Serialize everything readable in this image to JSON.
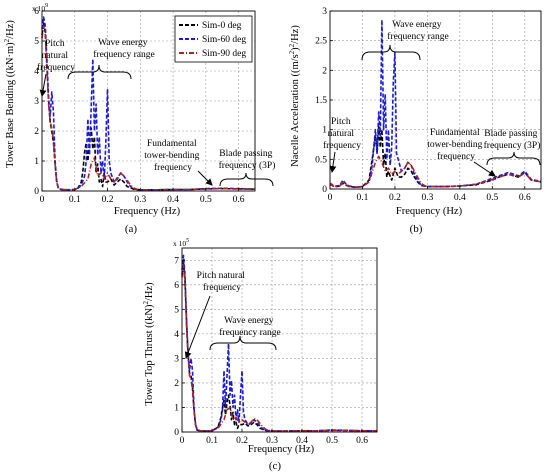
{
  "chart_data": [
    {
      "type": "line",
      "panel_label": "(a)",
      "xlabel": "Frequency (Hz)",
      "ylabel_parts": [
        "Tower Base Bending ((kN·m)",
        "2",
        "/Hz)"
      ],
      "y_exponent": [
        "x 10",
        "9"
      ],
      "xlim": [
        0,
        0.65
      ],
      "ylim": [
        0,
        6
      ],
      "xticks": [
        0,
        0.1,
        0.2,
        0.3,
        0.4,
        0.5,
        0.6
      ],
      "yticks": [
        0,
        1,
        2,
        3,
        4,
        5,
        6
      ],
      "xtick_labels": [
        "0",
        "0.1",
        "0.2",
        "0.3",
        "0.4",
        "0.5",
        "0.6"
      ],
      "ytick_labels": [
        "0",
        "1",
        "2",
        "3",
        "4",
        "5",
        "6"
      ],
      "grid": true,
      "legend": {
        "placement": "top-right",
        "entries": [
          {
            "label": "Sim-0 deg",
            "color": "#000000",
            "dash": "dashed"
          },
          {
            "label": "Sim-60 deg",
            "color": "#1a1adc",
            "dash": "dashed"
          },
          {
            "label": "Sim-90 deg",
            "color": "#b22222",
            "dash": "dashdot"
          }
        ]
      },
      "series": [
        {
          "color": "#000000",
          "x": [
            0,
            0.005,
            0.01,
            0.015,
            0.02,
            0.025,
            0.03,
            0.035,
            0.04,
            0.045,
            0.05,
            0.06,
            0.08,
            0.1,
            0.11,
            0.12,
            0.125,
            0.13,
            0.135,
            0.14,
            0.145,
            0.15,
            0.155,
            0.16,
            0.165,
            0.17,
            0.175,
            0.18,
            0.185,
            0.19,
            0.195,
            0.2,
            0.21,
            0.22,
            0.23,
            0.24,
            0.25,
            0.26,
            0.27,
            0.28,
            0.3,
            0.35,
            0.4,
            0.45,
            0.5,
            0.55,
            0.6,
            0.65
          ],
          "y": [
            5.2,
            5.6,
            5.3,
            4.2,
            3.0,
            2.3,
            2.0,
            1.6,
            0.9,
            0.3,
            0.08,
            0.05,
            0.04,
            0.05,
            0.1,
            0.3,
            0.7,
            1.3,
            1.6,
            1.0,
            1.7,
            2.1,
            1.4,
            1.8,
            0.6,
            0.9,
            0.3,
            0.4,
            0.15,
            0.6,
            0.3,
            0.3,
            0.4,
            0.2,
            0.3,
            0.4,
            0.3,
            0.15,
            0.1,
            0.06,
            0.04,
            0.04,
            0.05,
            0.05,
            0.07,
            0.08,
            0.07,
            0.06
          ]
        },
        {
          "color": "#1a1adc",
          "x": [
            0,
            0.005,
            0.01,
            0.015,
            0.02,
            0.025,
            0.03,
            0.035,
            0.04,
            0.045,
            0.05,
            0.06,
            0.08,
            0.1,
            0.11,
            0.12,
            0.13,
            0.135,
            0.14,
            0.145,
            0.15,
            0.155,
            0.16,
            0.165,
            0.17,
            0.175,
            0.18,
            0.185,
            0.19,
            0.195,
            0.2,
            0.205,
            0.21,
            0.22,
            0.23,
            0.24,
            0.25,
            0.26,
            0.27,
            0.28,
            0.3,
            0.35,
            0.4,
            0.45,
            0.5,
            0.55,
            0.6,
            0.65
          ],
          "y": [
            5.4,
            5.8,
            5.5,
            4.4,
            3.1,
            2.5,
            3.3,
            2.6,
            1.0,
            0.35,
            0.1,
            0.05,
            0.04,
            0.05,
            0.1,
            0.2,
            0.5,
            1.0,
            2.4,
            1.2,
            2.8,
            4.4,
            2.0,
            2.9,
            1.2,
            1.8,
            0.6,
            1.0,
            0.4,
            1.7,
            3.4,
            1.0,
            0.6,
            0.3,
            0.4,
            0.6,
            0.5,
            0.3,
            0.15,
            0.07,
            0.04,
            0.04,
            0.05,
            0.05,
            0.08,
            0.09,
            0.08,
            0.06
          ]
        },
        {
          "color": "#b22222",
          "x": [
            0,
            0.005,
            0.01,
            0.015,
            0.02,
            0.025,
            0.03,
            0.035,
            0.04,
            0.045,
            0.05,
            0.06,
            0.08,
            0.1,
            0.12,
            0.14,
            0.15,
            0.16,
            0.17,
            0.18,
            0.19,
            0.2,
            0.21,
            0.22,
            0.23,
            0.24,
            0.25,
            0.26,
            0.27,
            0.28,
            0.29,
            0.3,
            0.35,
            0.4,
            0.45,
            0.5,
            0.55,
            0.6,
            0.65
          ],
          "y": [
            5.1,
            5.5,
            5.2,
            4.1,
            2.9,
            2.3,
            2.1,
            1.7,
            0.9,
            0.3,
            0.08,
            0.05,
            0.04,
            0.05,
            0.15,
            0.4,
            0.9,
            1.1,
            0.5,
            0.6,
            0.4,
            0.6,
            0.4,
            0.3,
            0.45,
            0.6,
            0.5,
            0.35,
            0.2,
            0.1,
            0.06,
            0.04,
            0.04,
            0.05,
            0.05,
            0.07,
            0.08,
            0.07,
            0.06
          ]
        }
      ],
      "annotations": [
        {
          "lines": [
            "Pitch",
            "natural",
            "frequency"
          ]
        },
        {
          "lines": [
            "Wave energy",
            "frequency range"
          ]
        },
        {
          "lines": [
            "Fundamental",
            "tower-bending",
            "frequency"
          ]
        },
        {
          "lines": [
            "Blade passing",
            "frequency (3P)"
          ]
        }
      ]
    },
    {
      "type": "line",
      "panel_label": "(b)",
      "xlabel": "Frequency (Hz)",
      "ylabel_parts": [
        "Nacelle Acceleration ((m/s",
        "2",
        ")",
        "2",
        "/Hz)"
      ],
      "xlim": [
        0,
        0.65
      ],
      "ylim": [
        0,
        3
      ],
      "xticks": [
        0,
        0.1,
        0.2,
        0.3,
        0.4,
        0.5,
        0.6
      ],
      "yticks": [
        0,
        0.5,
        1,
        1.5,
        2,
        2.5,
        3
      ],
      "xtick_labels": [
        "0",
        "0.1",
        "0.2",
        "0.3",
        "0.4",
        "0.5",
        "0.6"
      ],
      "ytick_labels": [
        "0",
        "0.5",
        "1",
        "1.5",
        "2",
        "2.5",
        "3"
      ],
      "grid": true,
      "series": [
        {
          "color": "#000000",
          "x": [
            0,
            0.01,
            0.02,
            0.03,
            0.04,
            0.05,
            0.06,
            0.08,
            0.1,
            0.12,
            0.13,
            0.14,
            0.145,
            0.15,
            0.155,
            0.16,
            0.165,
            0.17,
            0.175,
            0.18,
            0.19,
            0.2,
            0.21,
            0.22,
            0.23,
            0.24,
            0.25,
            0.26,
            0.27,
            0.28,
            0.3,
            0.35,
            0.4,
            0.45,
            0.5,
            0.52,
            0.55,
            0.58,
            0.6,
            0.62,
            0.65
          ],
          "y": [
            0.08,
            0.05,
            0.04,
            0.05,
            0.1,
            0.06,
            0.04,
            0.03,
            0.04,
            0.15,
            0.5,
            0.9,
            0.6,
            1.05,
            0.7,
            1.0,
            0.4,
            0.6,
            0.2,
            0.3,
            0.15,
            0.35,
            0.2,
            0.2,
            0.25,
            0.35,
            0.3,
            0.2,
            0.12,
            0.06,
            0.04,
            0.04,
            0.05,
            0.07,
            0.15,
            0.2,
            0.25,
            0.2,
            0.28,
            0.15,
            0.12
          ]
        },
        {
          "color": "#1a1adc",
          "x": [
            0,
            0.01,
            0.02,
            0.03,
            0.04,
            0.05,
            0.06,
            0.08,
            0.1,
            0.12,
            0.13,
            0.14,
            0.145,
            0.15,
            0.155,
            0.16,
            0.165,
            0.17,
            0.175,
            0.18,
            0.185,
            0.19,
            0.195,
            0.2,
            0.205,
            0.21,
            0.22,
            0.23,
            0.24,
            0.25,
            0.26,
            0.27,
            0.28,
            0.3,
            0.35,
            0.4,
            0.45,
            0.5,
            0.52,
            0.55,
            0.58,
            0.6,
            0.62,
            0.65
          ],
          "y": [
            0.1,
            0.06,
            0.05,
            0.06,
            0.15,
            0.08,
            0.05,
            0.03,
            0.04,
            0.12,
            0.4,
            1.0,
            0.6,
            1.3,
            0.9,
            2.85,
            1.0,
            1.6,
            0.5,
            1.0,
            0.4,
            0.7,
            1.8,
            2.3,
            0.6,
            0.5,
            0.3,
            0.35,
            0.45,
            0.4,
            0.25,
            0.15,
            0.07,
            0.04,
            0.04,
            0.05,
            0.08,
            0.18,
            0.22,
            0.28,
            0.22,
            0.3,
            0.16,
            0.13
          ]
        },
        {
          "color": "#b22222",
          "x": [
            0,
            0.01,
            0.02,
            0.03,
            0.04,
            0.05,
            0.06,
            0.08,
            0.1,
            0.12,
            0.14,
            0.15,
            0.16,
            0.17,
            0.18,
            0.19,
            0.2,
            0.21,
            0.22,
            0.23,
            0.24,
            0.25,
            0.26,
            0.27,
            0.28,
            0.29,
            0.3,
            0.35,
            0.4,
            0.45,
            0.5,
            0.52,
            0.55,
            0.58,
            0.6,
            0.62,
            0.65
          ],
          "y": [
            0.09,
            0.05,
            0.04,
            0.05,
            0.12,
            0.07,
            0.04,
            0.03,
            0.04,
            0.12,
            0.45,
            0.55,
            0.45,
            0.3,
            0.35,
            0.25,
            0.3,
            0.25,
            0.3,
            0.35,
            0.45,
            0.4,
            0.3,
            0.2,
            0.1,
            0.06,
            0.04,
            0.04,
            0.05,
            0.08,
            0.16,
            0.2,
            0.25,
            0.2,
            0.27,
            0.15,
            0.12
          ]
        }
      ],
      "annotations": [
        {
          "lines": [
            "Pitch",
            "natural",
            "frequency"
          ]
        },
        {
          "lines": [
            "Wave energy",
            "frequency range"
          ]
        },
        {
          "lines": [
            "Fundamental",
            "tower-bending",
            "frequency"
          ]
        },
        {
          "lines": [
            "Blade passing",
            "frequency (3P)"
          ]
        }
      ]
    },
    {
      "type": "line",
      "panel_label": "(c)",
      "xlabel": "Frequency (Hz)",
      "ylabel_parts": [
        "Tower Top Thrust ((kN)",
        "2",
        "/Hz)"
      ],
      "y_exponent": [
        "x 10",
        "5"
      ],
      "xlim": [
        0,
        0.65
      ],
      "ylim": [
        0,
        7.5
      ],
      "xticks": [
        0,
        0.1,
        0.2,
        0.3,
        0.4,
        0.5,
        0.6
      ],
      "yticks": [
        0,
        1,
        2,
        3,
        4,
        5,
        6,
        7
      ],
      "xtick_labels": [
        "0",
        "0.1",
        "0.2",
        "0.3",
        "0.4",
        "0.5",
        "0.6"
      ],
      "ytick_labels": [
        "0",
        "1",
        "2",
        "3",
        "4",
        "5",
        "6",
        "7"
      ],
      "grid": true,
      "series": [
        {
          "color": "#000000",
          "x": [
            0,
            0.005,
            0.01,
            0.015,
            0.02,
            0.025,
            0.03,
            0.035,
            0.04,
            0.045,
            0.05,
            0.06,
            0.08,
            0.1,
            0.12,
            0.13,
            0.135,
            0.14,
            0.145,
            0.15,
            0.155,
            0.16,
            0.165,
            0.17,
            0.175,
            0.18,
            0.185,
            0.19,
            0.2,
            0.21,
            0.22,
            0.23,
            0.24,
            0.25,
            0.26,
            0.27,
            0.28,
            0.3,
            0.35,
            0.4,
            0.45,
            0.5,
            0.55,
            0.6,
            0.65
          ],
          "y": [
            6.4,
            6.9,
            6.2,
            4.5,
            3.2,
            2.4,
            2.3,
            1.8,
            0.9,
            0.3,
            0.08,
            0.05,
            0.04,
            0.05,
            0.2,
            0.6,
            1.0,
            1.3,
            0.7,
            1.2,
            1.5,
            1.1,
            0.5,
            0.8,
            0.3,
            0.4,
            0.15,
            0.3,
            0.3,
            0.35,
            0.25,
            0.3,
            0.4,
            0.3,
            0.15,
            0.1,
            0.06,
            0.04,
            0.04,
            0.05,
            0.05,
            0.07,
            0.06,
            0.05,
            0.05
          ]
        },
        {
          "color": "#1a1adc",
          "x": [
            0,
            0.005,
            0.01,
            0.015,
            0.02,
            0.025,
            0.03,
            0.035,
            0.04,
            0.045,
            0.05,
            0.06,
            0.08,
            0.1,
            0.12,
            0.13,
            0.135,
            0.14,
            0.145,
            0.15,
            0.155,
            0.16,
            0.165,
            0.17,
            0.175,
            0.18,
            0.185,
            0.19,
            0.195,
            0.2,
            0.205,
            0.21,
            0.22,
            0.23,
            0.24,
            0.25,
            0.26,
            0.27,
            0.28,
            0.3,
            0.35,
            0.4,
            0.45,
            0.5,
            0.55,
            0.6,
            0.65
          ],
          "y": [
            6.6,
            7.2,
            6.4,
            4.6,
            3.3,
            2.5,
            3.0,
            2.5,
            1.0,
            0.35,
            0.1,
            0.05,
            0.04,
            0.05,
            0.2,
            0.5,
            0.9,
            2.5,
            1.0,
            2.3,
            3.6,
            1.5,
            2.1,
            1.0,
            1.5,
            0.5,
            0.9,
            0.4,
            1.5,
            2.5,
            0.8,
            0.5,
            0.3,
            0.35,
            0.5,
            0.4,
            0.25,
            0.12,
            0.06,
            0.04,
            0.04,
            0.05,
            0.05,
            0.08,
            0.07,
            0.05,
            0.05
          ]
        },
        {
          "color": "#b22222",
          "x": [
            0,
            0.005,
            0.01,
            0.015,
            0.02,
            0.025,
            0.03,
            0.035,
            0.04,
            0.045,
            0.05,
            0.06,
            0.08,
            0.1,
            0.12,
            0.14,
            0.15,
            0.16,
            0.17,
            0.18,
            0.19,
            0.2,
            0.21,
            0.22,
            0.23,
            0.24,
            0.25,
            0.26,
            0.27,
            0.28,
            0.29,
            0.3,
            0.35,
            0.4,
            0.45,
            0.5,
            0.55,
            0.6,
            0.65
          ],
          "y": [
            6.3,
            6.8,
            6.1,
            4.4,
            3.1,
            2.3,
            2.2,
            1.7,
            0.9,
            0.3,
            0.08,
            0.05,
            0.04,
            0.05,
            0.15,
            0.5,
            0.9,
            1.0,
            0.5,
            0.6,
            0.4,
            0.5,
            0.4,
            0.3,
            0.4,
            0.55,
            0.5,
            0.35,
            0.2,
            0.1,
            0.06,
            0.04,
            0.04,
            0.05,
            0.05,
            0.07,
            0.06,
            0.05,
            0.05
          ]
        }
      ],
      "annotations": [
        {
          "lines": [
            "Pitch natural",
            "frequency"
          ]
        },
        {
          "lines": [
            "Wave energy",
            "frequency range"
          ]
        }
      ]
    }
  ]
}
